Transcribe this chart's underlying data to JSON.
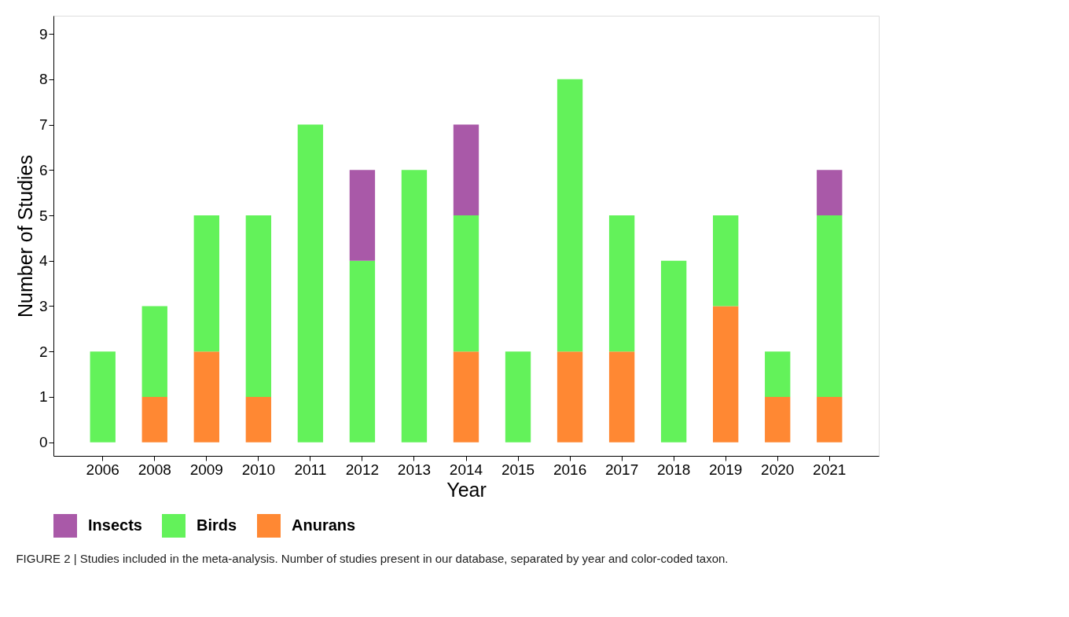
{
  "chart_data": {
    "type": "bar",
    "stacked": true,
    "xlabel": "Year",
    "ylabel": "Number of Studies",
    "categories": [
      "2006",
      "2008",
      "2009",
      "2010",
      "2011",
      "2012",
      "2013",
      "2014",
      "2015",
      "2016",
      "2017",
      "2018",
      "2019",
      "2020",
      "2021"
    ],
    "series": [
      {
        "name": "Anurans",
        "color": "#ff8833",
        "values": [
          0,
          1,
          2,
          1,
          0,
          0,
          0,
          2,
          0,
          2,
          2,
          0,
          3,
          1,
          1
        ]
      },
      {
        "name": "Birds",
        "color": "#63f25a",
        "values": [
          2,
          2,
          3,
          4,
          7,
          4,
          6,
          3,
          2,
          6,
          3,
          4,
          2,
          1,
          4
        ]
      },
      {
        "name": "Insects",
        "color": "#a959a8",
        "values": [
          0,
          0,
          0,
          0,
          0,
          2,
          0,
          2,
          0,
          0,
          0,
          0,
          0,
          0,
          1
        ]
      }
    ],
    "ylim": [
      -0.3,
      9.4
    ],
    "yticks": [
      0,
      1,
      2,
      3,
      4,
      5,
      6,
      7,
      8,
      9
    ],
    "grid": false,
    "legend": "bottom",
    "annotations": [
      "FIGURE 2 | Studies included in the meta-analysis. Number of studies present in our database, separated by year and color-coded taxon."
    ]
  }
}
